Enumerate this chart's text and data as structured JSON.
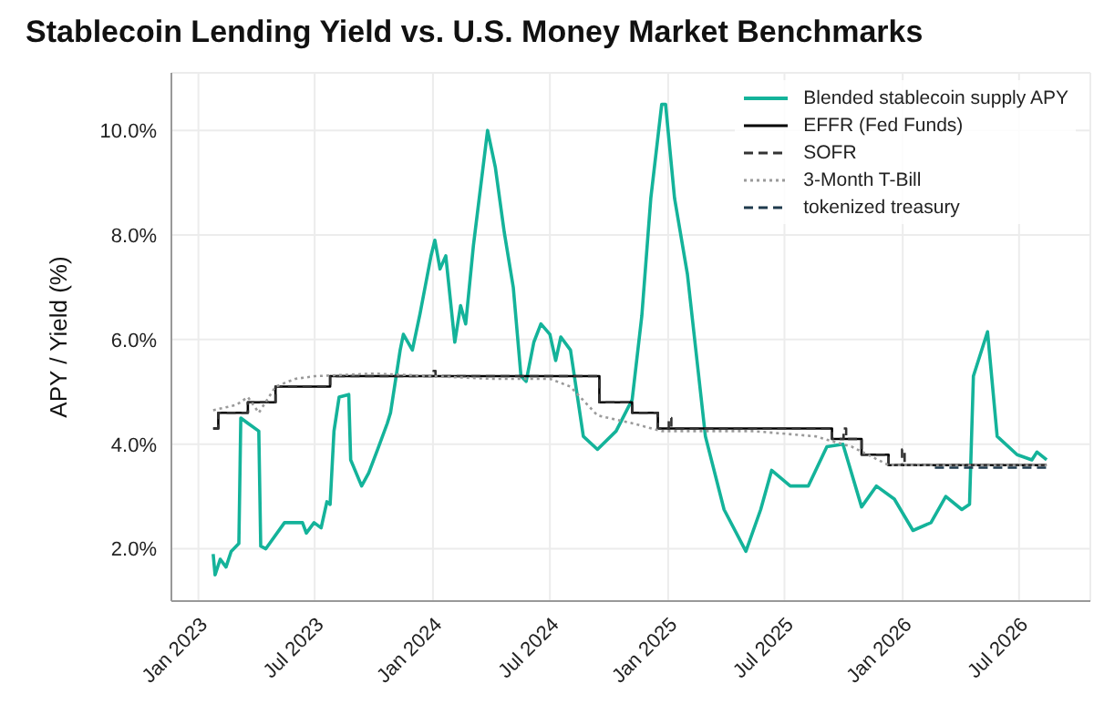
{
  "chart_data": {
    "type": "line",
    "title": "Stablecoin Lending Yield vs. U.S. Money Market Benchmarks",
    "ylabel": "APY / Yield (%)",
    "xlim": [
      "2022-11-20",
      "2026-10-20"
    ],
    "xticks": [
      {
        "value": "2023-01-01",
        "label": "Jan 2023"
      },
      {
        "value": "2023-07-01",
        "label": "Jul 2023"
      },
      {
        "value": "2024-01-01",
        "label": "Jan 2024"
      },
      {
        "value": "2024-07-01",
        "label": "Jul 2024"
      },
      {
        "value": "2025-01-01",
        "label": "Jan 2025"
      },
      {
        "value": "2025-07-01",
        "label": "Jul 2025"
      },
      {
        "value": "2026-01-01",
        "label": "Jan 2026"
      },
      {
        "value": "2026-07-01",
        "label": "Jul 2026"
      }
    ],
    "ylim": [
      1.0,
      11.1
    ],
    "yticks": [
      {
        "value": 2,
        "label": "2.0%"
      },
      {
        "value": 4,
        "label": "4.0%"
      },
      {
        "value": 6,
        "label": "6.0%"
      },
      {
        "value": 8,
        "label": "8.0%"
      },
      {
        "value": 10,
        "label": "10.0%"
      }
    ],
    "grid": true,
    "legend": "top right",
    "series": [
      {
        "name": "Blended stablecoin supply APY",
        "type": "line",
        "color": "#14b39a",
        "line_style": "solid",
        "x": [
          "2023-01-24",
          "2023-01-27",
          "2023-02-04",
          "2023-02-13",
          "2023-02-21",
          "2023-03-05",
          "2023-03-08",
          "2023-03-19",
          "2023-04-05",
          "2023-04-08",
          "2023-04-16",
          "2023-05-15",
          "2023-06-12",
          "2023-06-18",
          "2023-06-30",
          "2023-07-11",
          "2023-07-20",
          "2023-07-25",
          "2023-07-31",
          "2023-08-08",
          "2023-08-23",
          "2023-08-26",
          "2023-09-12",
          "2023-09-23",
          "2023-10-07",
          "2023-10-22",
          "2023-10-27",
          "2023-11-11",
          "2023-11-16",
          "2023-11-30",
          "2023-12-12",
          "2023-12-29",
          "2024-01-04",
          "2024-01-12",
          "2024-01-21",
          "2024-02-04",
          "2024-02-13",
          "2024-02-21",
          "2024-03-04",
          "2024-03-26",
          "2024-04-07",
          "2024-04-21",
          "2024-05-05",
          "2024-05-17",
          "2024-05-25",
          "2024-06-06",
          "2024-06-17",
          "2024-07-01",
          "2024-07-10",
          "2024-07-18",
          "2024-08-02",
          "2024-08-22",
          "2024-09-13",
          "2024-10-12",
          "2024-11-06",
          "2024-11-21",
          "2024-12-05",
          "2024-12-22",
          "2024-12-28",
          "2025-01-11",
          "2025-01-31",
          "2025-02-28",
          "2025-03-29",
          "2025-05-02",
          "2025-05-25",
          "2025-06-11",
          "2025-07-10",
          "2025-08-07",
          "2025-09-05",
          "2025-09-30",
          "2025-10-29",
          "2025-11-21",
          "2025-12-19",
          "2026-01-17",
          "2026-02-14",
          "2026-03-09",
          "2026-04-03",
          "2026-04-15",
          "2026-04-21",
          "2026-05-13",
          "2026-05-28",
          "2026-06-28",
          "2026-07-21",
          "2026-07-29",
          "2026-08-13"
        ],
        "values": [
          1.9,
          1.5,
          1.8,
          1.65,
          1.95,
          2.1,
          4.5,
          4.4,
          4.25,
          2.05,
          2.0,
          2.5,
          2.5,
          2.3,
          2.5,
          2.4,
          2.9,
          2.85,
          4.25,
          4.9,
          4.95,
          3.7,
          3.2,
          3.45,
          3.9,
          4.4,
          4.6,
          5.8,
          6.1,
          5.8,
          6.5,
          7.6,
          7.9,
          7.35,
          7.6,
          5.95,
          6.65,
          6.3,
          7.8,
          10.0,
          9.3,
          8.05,
          7.0,
          5.3,
          5.2,
          5.95,
          6.3,
          6.1,
          5.6,
          6.05,
          5.8,
          4.15,
          3.9,
          4.25,
          4.85,
          6.45,
          8.7,
          10.5,
          10.5,
          8.7,
          7.25,
          4.15,
          2.75,
          1.95,
          2.75,
          3.5,
          3.2,
          3.2,
          3.95,
          4.0,
          2.8,
          3.2,
          2.95,
          2.35,
          2.5,
          3.0,
          2.75,
          2.85,
          5.3,
          6.15,
          4.15,
          3.8,
          3.7,
          3.85,
          3.7
        ]
      },
      {
        "name": "EFFR (Fed Funds)",
        "type": "step",
        "color": "#000000",
        "line_style": "solid",
        "x": [
          "2023-01-24",
          "2023-02-01",
          "2023-03-19",
          "2023-05-01",
          "2023-07-25",
          "2024-09-16",
          "2024-11-06",
          "2024-12-16",
          "2025-09-13",
          "2025-10-29",
          "2025-12-10",
          "2026-08-13"
        ],
        "values": [
          4.3,
          4.6,
          4.8,
          5.1,
          5.3,
          4.8,
          4.6,
          4.3,
          4.1,
          3.8,
          3.6,
          3.6
        ]
      },
      {
        "name": "SOFR",
        "type": "step",
        "color": "#333333",
        "line_style": "dashed",
        "x": [
          "2023-01-24",
          "2023-02-01",
          "2023-03-19",
          "2023-05-01",
          "2023-07-25",
          "2024-01-02",
          "2024-01-05",
          "2024-09-16",
          "2024-11-06",
          "2024-12-16",
          "2025-01-02",
          "2025-01-06",
          "2025-09-13",
          "2025-10-01",
          "2025-10-05",
          "2025-10-29",
          "2025-12-10",
          "2025-12-31",
          "2026-01-04",
          "2026-08-13"
        ],
        "values": [
          4.3,
          4.6,
          4.8,
          5.1,
          5.3,
          5.4,
          5.3,
          4.8,
          4.6,
          4.3,
          4.5,
          4.3,
          4.1,
          4.3,
          4.1,
          3.8,
          3.6,
          3.9,
          3.6,
          3.6
        ]
      },
      {
        "name": "3-Month T-Bill",
        "type": "line",
        "color": "#9a9a9a",
        "line_style": "dotted",
        "x": [
          "2023-01-24",
          "2023-03-01",
          "2023-03-19",
          "2023-04-05",
          "2023-05-01",
          "2023-06-01",
          "2023-07-01",
          "2023-10-01",
          "2024-01-01",
          "2024-04-01",
          "2024-07-01",
          "2024-08-02",
          "2024-09-13",
          "2024-11-06",
          "2024-12-22",
          "2025-05-14",
          "2025-08-18",
          "2025-10-14",
          "2025-12-10",
          "2026-08-13"
        ],
        "values": [
          4.65,
          4.75,
          4.9,
          4.6,
          5.1,
          5.25,
          5.3,
          5.35,
          5.3,
          5.25,
          5.25,
          5.1,
          4.55,
          4.4,
          4.25,
          4.25,
          4.15,
          3.95,
          3.6,
          3.6
        ]
      },
      {
        "name": "tokenized treasury",
        "type": "line",
        "color": "#1f3a4d",
        "line_style": "dashed",
        "x": [
          "2026-02-20",
          "2026-05-01",
          "2026-08-13"
        ],
        "values": [
          3.55,
          3.55,
          3.55
        ]
      }
    ]
  }
}
